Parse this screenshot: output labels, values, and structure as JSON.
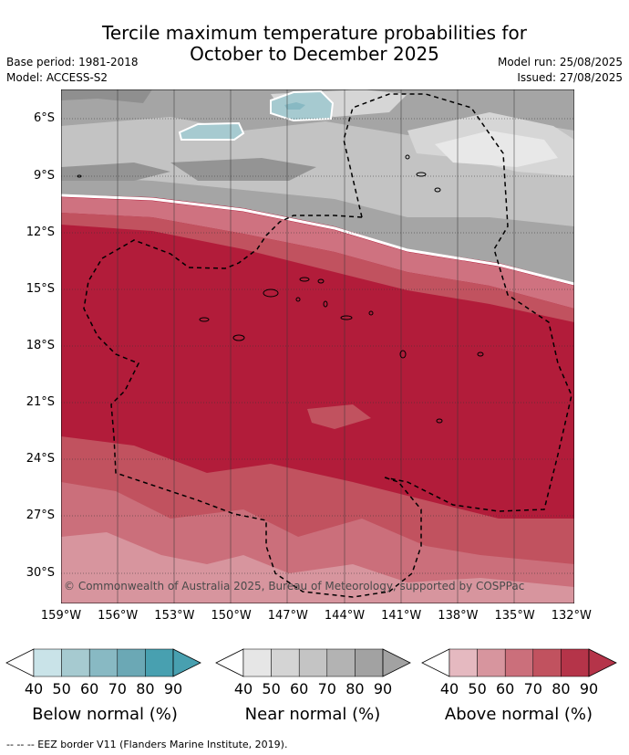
{
  "title_line1": "Tercile maximum temperature probabilities for",
  "title_line2": "October to December 2025",
  "base_period": "Base period: 1981-2018",
  "model": "Model: ACCESS-S2",
  "model_run": "Model run: 25/08/2025",
  "issued": "Issued: 27/08/2025",
  "copyright": "© Commonwealth of Australia 2025, Bureau of Meteorology, supported by COSPPac",
  "lat_labels": [
    "6°S",
    "9°S",
    "12°S",
    "15°S",
    "18°S",
    "21°S",
    "24°S",
    "27°S",
    "30°S"
  ],
  "lon_labels": [
    "159°W",
    "156°W",
    "153°W",
    "150°W",
    "147°W",
    "144°W",
    "141°W",
    "138°W",
    "135°W",
    "132°W"
  ],
  "legend": {
    "ticks": [
      "40",
      "50",
      "60",
      "70",
      "80",
      "90"
    ],
    "below": {
      "title": "Below normal (%)",
      "colors": [
        "#c9e3e8",
        "#a6cad0",
        "#88b9c3",
        "#6ba8b5",
        "#48a0b0"
      ]
    },
    "near": {
      "title": "Near normal (%)",
      "colors": [
        "#e6e6e6",
        "#d4d4d4",
        "#c4c4c4",
        "#b3b3b3",
        "#a2a2a2"
      ]
    },
    "above": {
      "title": "Above normal (%)",
      "colors": [
        "#e5b9c0",
        "#d7959e",
        "#cb6f7b",
        "#c1525f",
        "#b53449"
      ]
    }
  },
  "footer": "-- -- -- EEZ border V11 (Flanders Marine Institute, 2019)."
}
